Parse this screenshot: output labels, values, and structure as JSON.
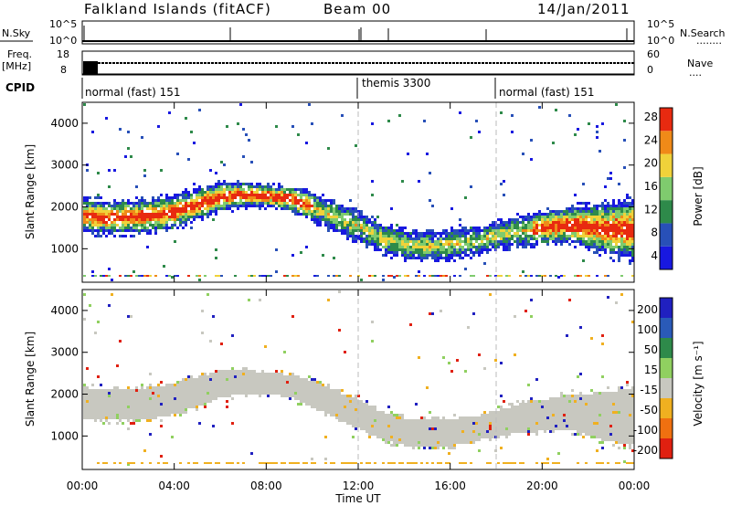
{
  "header": {
    "station": "Falkland Islands (fitACF)",
    "beam": "Beam 00",
    "date": "14/Jan/2011"
  },
  "panels": {
    "nsky": {
      "label": "N.Sky",
      "ticks": [
        "10^5",
        "10^0"
      ]
    },
    "nsearch": {
      "label": "N.Search",
      "ticks": [
        "10^5",
        "10^0"
      ]
    },
    "freq": {
      "label_line1": "Freq.",
      "label_line2": "[MHz]",
      "ticks": [
        "18",
        "8"
      ]
    },
    "nave": {
      "label": "Nave",
      "ticks": [
        "60",
        "0"
      ]
    },
    "cpid": {
      "label": "CPID",
      "segments": [
        "normal (fast) 151",
        "themis 3300",
        "normal (fast) 151"
      ]
    }
  },
  "legend_dots": {
    "nsearch": "........",
    "nave": "...."
  },
  "chart_data": [
    {
      "type": "heatmap",
      "name": "power",
      "ylabel": "Slant Range [km]",
      "yticks": [
        "1000",
        "2000",
        "3000",
        "4000"
      ],
      "ylim": [
        200,
        4500
      ],
      "xlim_hours": [
        0,
        24
      ],
      "colorbar": {
        "label": "Power [dB]",
        "ticks": [
          "4",
          "8",
          "12",
          "16",
          "20",
          "24",
          "28"
        ],
        "colors": [
          "#1818e0",
          "#2850b8",
          "#2e8a4a",
          "#7fcb6e",
          "#f0d23a",
          "#f08a18",
          "#e82a10"
        ]
      },
      "bands": [
        {
          "h": [
            0.0,
            1.0,
            2.0,
            3.0,
            4.0,
            5.0,
            6.0,
            7.0,
            8.0,
            9.0,
            10.0,
            11.0,
            12.0,
            13.0,
            14.0,
            15.0,
            16.0,
            17.0,
            18.0,
            19.0,
            20.0,
            21.0,
            22.0,
            23.0,
            24.0
          ],
          "lo": [
            1450,
            1400,
            1420,
            1450,
            1550,
            1750,
            1950,
            2050,
            2050,
            1950,
            1700,
            1450,
            1200,
            950,
            800,
            750,
            800,
            900,
            1050,
            1100,
            1150,
            1200,
            1050,
            900,
            800
          ],
          "hi": [
            2200,
            2150,
            2150,
            2200,
            2300,
            2450,
            2600,
            2600,
            2550,
            2500,
            2350,
            2100,
            1900,
            1600,
            1450,
            1400,
            1450,
            1500,
            1650,
            1800,
            1900,
            2000,
            2050,
            2100,
            2200
          ],
          "core": 26
        }
      ],
      "time_markers_h": [
        12,
        18
      ]
    },
    {
      "type": "heatmap",
      "name": "velocity",
      "ylabel": "Slant Range [km]",
      "yticks": [
        "1000",
        "2000",
        "3000",
        "4000"
      ],
      "ylim": [
        200,
        4500
      ],
      "xlim_hours": [
        0,
        24
      ],
      "colorbar": {
        "label": "Velocity [m s⁻¹]",
        "ticks": [
          "200",
          "100",
          "50",
          "15",
          "-15",
          "-50",
          "-100",
          "-200"
        ],
        "colors": [
          "#2020c0",
          "#2a5ab8",
          "#2e8a4a",
          "#90d060",
          "#c8c8c0",
          "#f0b020",
          "#f07010",
          "#e02010"
        ]
      },
      "time_markers_h": [
        12,
        18
      ]
    }
  ],
  "xaxis": {
    "label": "Time UT",
    "ticks": [
      "00:00",
      "04:00",
      "08:00",
      "12:00",
      "16:00",
      "20:00",
      "00:00"
    ]
  }
}
